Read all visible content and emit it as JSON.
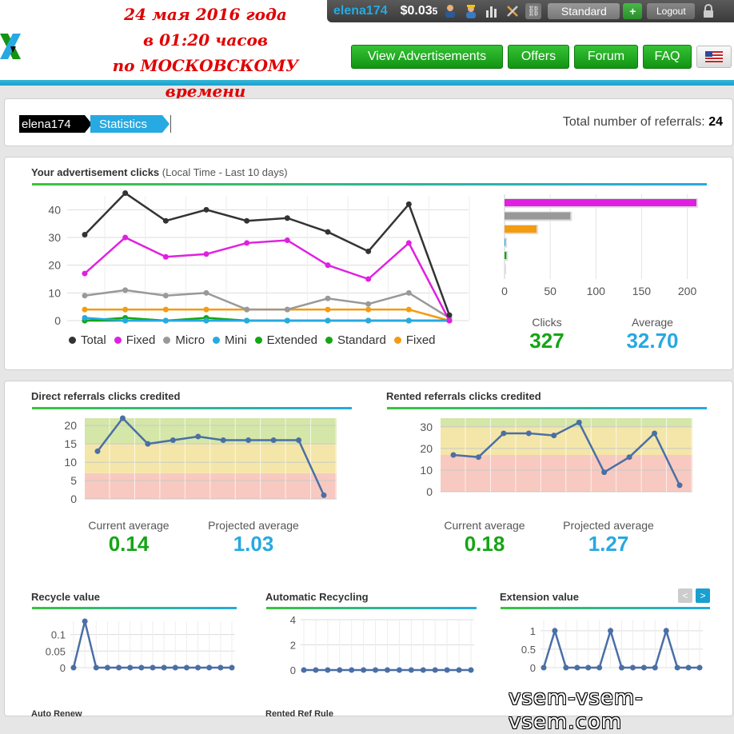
{
  "overlay_date": [
    "24 мая 2016 года",
    "в 01:20 часов",
    "по МОСКОВСКОМУ времени"
  ],
  "topbar": {
    "username": "elena174",
    "balance": "$0.03",
    "balance_small": "5",
    "icons": [
      "person-icon",
      "worker-icon",
      "stats-icon",
      "tools-icon",
      "link-icon"
    ],
    "membership": "Standard",
    "plus": "+",
    "logout": "Logout"
  },
  "nav": [
    "View Advertisements",
    "Offers",
    "Forum",
    "FAQ"
  ],
  "breadcrumb": {
    "user": "elena174",
    "page": "Statistics"
  },
  "referrals": {
    "label": "Total number of referrals:",
    "value": "24"
  },
  "ad_clicks": {
    "title": "Your advertisement clicks",
    "subtitle": "(Local Time - Last 10 days)",
    "legend": [
      {
        "label": "Total",
        "color": "#333333"
      },
      {
        "label": "Fixed",
        "color": "#e020e0"
      },
      {
        "label": "Micro",
        "color": "#999999"
      },
      {
        "label": "Mini",
        "color": "#27a9e1"
      },
      {
        "label": "Extended",
        "color": "#15a515"
      },
      {
        "label": "Standard",
        "color": "#15a515"
      },
      {
        "label": "Fixed",
        "color": "#f39c12"
      }
    ],
    "clicks_label": "Clicks",
    "clicks_value": "327",
    "average_label": "Average",
    "average_value": "32.70"
  },
  "direct": {
    "title": "Direct referrals clicks credited",
    "current_label": "Current average",
    "current_value": "0.14",
    "projected_label": "Projected average",
    "projected_value": "1.03"
  },
  "rented": {
    "title": "Rented referrals clicks credited",
    "current_label": "Current average",
    "current_value": "0.18",
    "projected_label": "Projected average",
    "projected_value": "1.27"
  },
  "recycle": {
    "title": "Recycle value"
  },
  "autorecycle": {
    "title": "Automatic Recycling"
  },
  "extension": {
    "title": "Extension value",
    "prev": "<",
    "next": ">"
  },
  "bottom_labels": [
    "Auto Renew",
    "Rented Ref Rule"
  ],
  "watermark": "vsem-vsem-vsem.com",
  "chart_data": [
    {
      "type": "line",
      "title": "Your advertisement clicks",
      "x": [
        1,
        2,
        3,
        4,
        5,
        6,
        7,
        8,
        9,
        10
      ],
      "ylim": [
        0,
        45
      ],
      "yticks": [
        0,
        10,
        20,
        30,
        40
      ],
      "series": [
        {
          "name": "Total",
          "color": "#333333",
          "values": [
            31,
            46,
            36,
            40,
            36,
            37,
            32,
            25,
            42,
            2
          ]
        },
        {
          "name": "Fixed",
          "color": "#e020e0",
          "values": [
            17,
            30,
            23,
            24,
            28,
            29,
            20,
            15,
            28,
            0
          ]
        },
        {
          "name": "Micro",
          "color": "#999999",
          "values": [
            9,
            11,
            9,
            10,
            4,
            4,
            8,
            6,
            10,
            1
          ]
        },
        {
          "name": "Mini",
          "color": "#27a9e1",
          "values": [
            1,
            0,
            0,
            0,
            0,
            0,
            0,
            0,
            0,
            0
          ]
        },
        {
          "name": "Extended",
          "color": "#15a515",
          "values": [
            0,
            1,
            0,
            1,
            0,
            0,
            0,
            0,
            0,
            0
          ]
        },
        {
          "name": "Standard",
          "color": "#15a515",
          "values": [
            0,
            0,
            0,
            0,
            0,
            0,
            0,
            0,
            0,
            0
          ]
        },
        {
          "name": "Fixed",
          "color": "#f39c12",
          "values": [
            4,
            4,
            4,
            4,
            4,
            4,
            4,
            4,
            4,
            0
          ]
        }
      ],
      "grid": true
    },
    {
      "type": "bar",
      "orientation": "horizontal",
      "xlim": [
        0,
        210
      ],
      "xticks": [
        0,
        50,
        100,
        150,
        200
      ],
      "series": [
        {
          "color": "#e020e0",
          "value": 210
        },
        {
          "color": "#999999",
          "value": 72
        },
        {
          "color": "#f39c12",
          "value": 35
        },
        {
          "color": "#27a9e1",
          "value": 1
        },
        {
          "color": "#15a515",
          "value": 2
        },
        {
          "color": "#15a515",
          "value": 0
        }
      ]
    },
    {
      "type": "line",
      "title": "Direct referrals clicks credited",
      "ylim": [
        0,
        22
      ],
      "yticks": [
        0,
        5,
        10,
        15,
        20
      ],
      "bands": [
        {
          "from": 0,
          "to": 7,
          "color": "#f8c9c0"
        },
        {
          "from": 7,
          "to": 15,
          "color": "#f4e6a8"
        },
        {
          "from": 15,
          "to": 24,
          "color": "#d4e6a8"
        }
      ],
      "values": [
        13,
        22,
        15,
        16,
        17,
        16,
        16,
        16,
        16,
        1
      ]
    },
    {
      "type": "line",
      "title": "Rented referrals clicks credited",
      "ylim": [
        0,
        34
      ],
      "yticks": [
        0,
        10,
        20,
        30
      ],
      "bands": [
        {
          "from": 0,
          "to": 17,
          "color": "#f8c9c0"
        },
        {
          "from": 17,
          "to": 30,
          "color": "#f4e6a8"
        },
        {
          "from": 30,
          "to": 34,
          "color": "#d4e6a8"
        }
      ],
      "values": [
        17,
        16,
        27,
        27,
        26,
        32,
        9,
        16,
        27,
        3
      ]
    },
    {
      "type": "line",
      "title": "Recycle value",
      "ylim": [
        0,
        0.14
      ],
      "yticks": [
        0,
        0.05,
        0.1
      ],
      "ytick_labels": [
        "0",
        "0.05",
        "0.1"
      ],
      "values": [
        0,
        0.14,
        0,
        0,
        0,
        0,
        0,
        0,
        0,
        0,
        0,
        0,
        0,
        0,
        0
      ]
    },
    {
      "type": "line",
      "title": "Automatic Recycling",
      "ylim": [
        0,
        4
      ],
      "yticks": [
        0,
        2,
        4
      ],
      "values": [
        0,
        0,
        0,
        0,
        0,
        0,
        0,
        0,
        0,
        0,
        0,
        0,
        0,
        0,
        0
      ]
    },
    {
      "type": "line",
      "title": "Extension value",
      "ylim": [
        0,
        1.3
      ],
      "yticks": [
        0,
        0.5,
        1
      ],
      "ytick_labels": [
        "0",
        "0.5",
        "1"
      ],
      "values": [
        0,
        1,
        0,
        0,
        0,
        0,
        1,
        0,
        0,
        0,
        0,
        1,
        0,
        0,
        0
      ]
    }
  ]
}
